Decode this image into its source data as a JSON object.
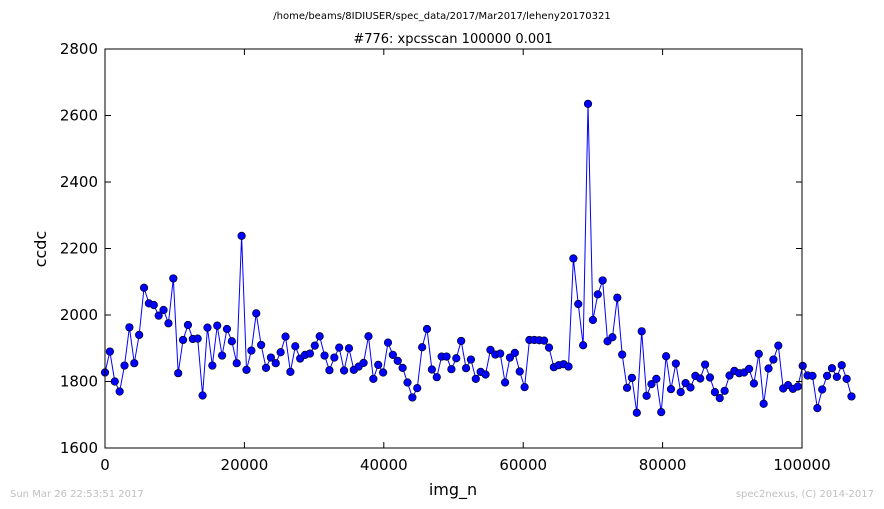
{
  "page": {
    "suptitle": "/home/beams/8IDIUSER/spec_data/2017/Mar2017/leheny20170321",
    "footer_left": "Sun Mar 26 22:53:51 2017",
    "footer_right": "spec2nexus, (C) 2014-2017"
  },
  "colors": {
    "series": "#0000ff",
    "axes": "#000000",
    "footer": "#bfbfbf"
  },
  "chart_data": {
    "type": "line",
    "title": "#776: xpcsscan 100000 0.001",
    "xlabel": "img_n",
    "ylabel": "ccdc",
    "xlim": [
      0,
      100000
    ],
    "ylim": [
      1600,
      2800
    ],
    "xticks": [
      0,
      20000,
      40000,
      60000,
      80000,
      100000
    ],
    "yticks": [
      1600,
      1800,
      2000,
      2200,
      2400,
      2600,
      2800
    ],
    "grid": false,
    "marker": "circle",
    "series": [
      {
        "x_start": 0,
        "x_step": 700,
        "values": [
          1827,
          1890,
          1800,
          1770,
          1848,
          1963,
          1855,
          1940,
          2082,
          2035,
          2030,
          1998,
          2015,
          1975,
          2110,
          1825,
          1925,
          1970,
          1928,
          1929,
          1758,
          1962,
          1848,
          1968,
          1878,
          1958,
          1921,
          1855,
          2238,
          1835,
          1893,
          2005,
          1910,
          1841,
          1872,
          1855,
          1888,
          1935,
          1829,
          1906,
          1869,
          1880,
          1884,
          1908,
          1936,
          1878,
          1834,
          1872,
          1902,
          1833,
          1900,
          1835,
          1845,
          1856,
          1936,
          1808,
          1850,
          1827,
          1917,
          1880,
          1862,
          1841,
          1797,
          1752,
          1780,
          1903,
          1958,
          1836,
          1813,
          1875,
          1875,
          1837,
          1870,
          1922,
          1840,
          1866,
          1808,
          1829,
          1821,
          1895,
          1881,
          1884,
          1797,
          1872,
          1886,
          1830,
          1783,
          1925,
          1925,
          1924,
          1923,
          1902,
          1843,
          1849,
          1852,
          1845,
          2170,
          2033,
          1909,
          2635,
          1985,
          2062,
          2104,
          1921,
          1933,
          2052,
          1881,
          1781,
          1811,
          1706,
          1951,
          1757,
          1792,
          1808,
          1708,
          1876,
          1777,
          1854,
          1768,
          1795,
          1782,
          1817,
          1809,
          1851,
          1812,
          1768,
          1750,
          1772,
          1818,
          1832,
          1825,
          1827,
          1838,
          1794,
          1883,
          1733,
          1839,
          1866,
          1908,
          1779,
          1789,
          1778,
          1785,
          1847,
          1818,
          1817,
          1720,
          1776,
          1817,
          1840,
          1814,
          1849,
          1808,
          1755
        ]
      }
    ]
  }
}
